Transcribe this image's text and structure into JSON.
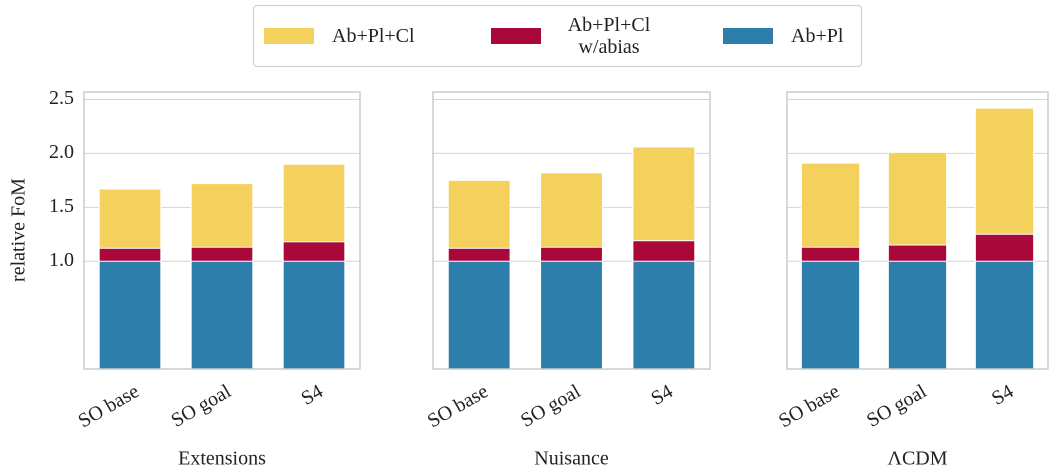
{
  "chart_data": [
    {
      "type": "bar",
      "barmode": "overlay",
      "title": "Extensions",
      "ylabel": "relative FoM",
      "categories": [
        "SO base",
        "SO goal",
        "S4"
      ],
      "series": [
        {
          "name": "Ab+Pl+Cl",
          "color": "#f4d05c",
          "values": [
            1.67,
            1.72,
            1.9
          ]
        },
        {
          "name": "Ab+Pl+Cl w/abias",
          "color": "#a8083a",
          "values": [
            1.12,
            1.13,
            1.18
          ]
        },
        {
          "name": "Ab+Pl",
          "color": "#2e7eac",
          "values": [
            1.0,
            1.0,
            1.0
          ]
        }
      ],
      "ylim": [
        0,
        2.57
      ],
      "ytick_labels": true,
      "yticks": [
        {
          "value": 1,
          "label": "1.0"
        },
        1.5,
        {
          "value": 2,
          "label": "2.0"
        },
        2.5
      ],
      "grid": true
    },
    {
      "type": "bar",
      "barmode": "overlay",
      "title": "Nuisance",
      "categories": [
        "SO base",
        "SO goal",
        "S4"
      ],
      "series": [
        {
          "name": "Ab+Pl+Cl",
          "color": "#f4d05c",
          "values": [
            1.75,
            1.82,
            2.06
          ]
        },
        {
          "name": "Ab+Pl+Cl w/abias",
          "color": "#a8083a",
          "values": [
            1.12,
            1.13,
            1.19
          ]
        },
        {
          "name": "Ab+Pl",
          "color": "#2e7eac",
          "values": [
            1.0,
            1.0,
            1.0
          ]
        }
      ],
      "ylim": [
        0,
        2.57
      ],
      "ytick_labels": false,
      "yticks": [
        1,
        1.5,
        2,
        2.5
      ],
      "grid": true
    },
    {
      "type": "bar",
      "barmode": "overlay",
      "title": "ΛCDM",
      "categories": [
        "SO base",
        "SO goal",
        "S4"
      ],
      "series": [
        {
          "name": "Ab+Pl+Cl",
          "color": "#f4d05c",
          "values": [
            1.91,
            2.01,
            2.42
          ]
        },
        {
          "name": "Ab+Pl+Cl w/abias",
          "color": "#a8083a",
          "values": [
            1.13,
            1.15,
            1.25
          ]
        },
        {
          "name": "Ab+Pl",
          "color": "#2e7eac",
          "values": [
            1.0,
            1.0,
            1.0
          ]
        }
      ],
      "ylim": [
        0,
        2.57
      ],
      "ytick_labels": false,
      "yticks": [
        1,
        1.5,
        2,
        2.5
      ],
      "grid": true
    }
  ]
}
